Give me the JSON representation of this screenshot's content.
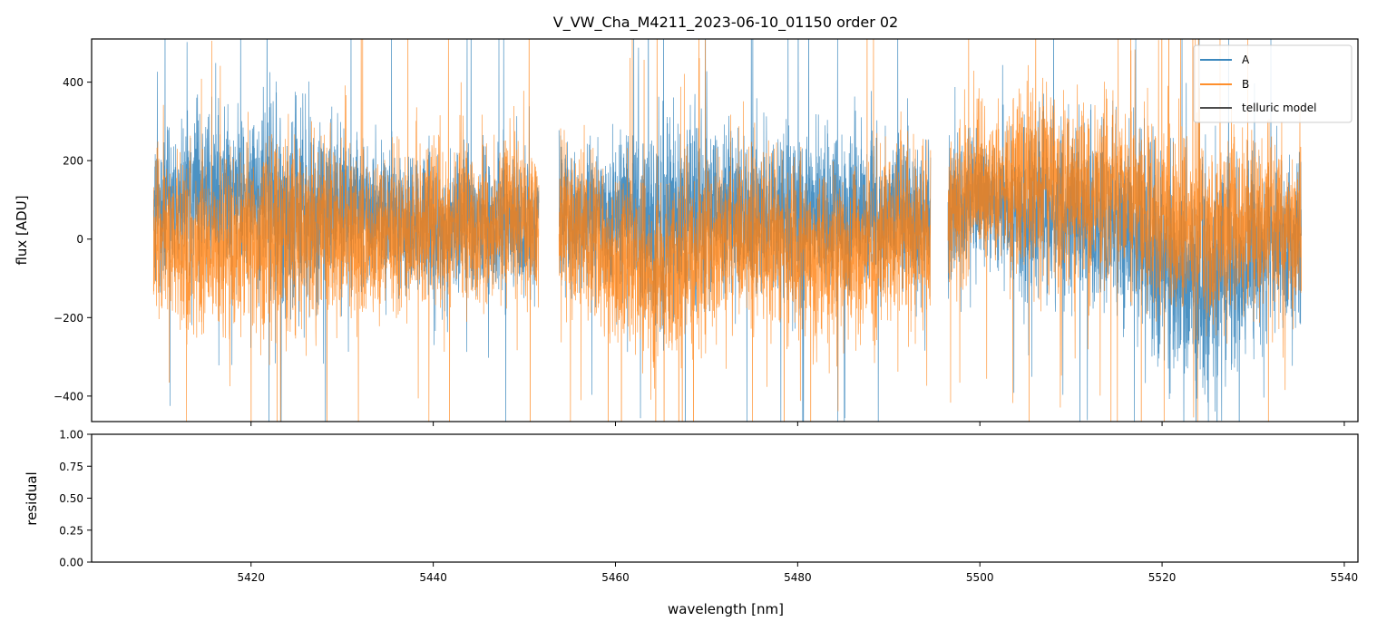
{
  "chart_data": [
    {
      "panel": "top",
      "type": "line",
      "title": "V_VW_Cha_M4211_2023-06-10_01150  order 02",
      "xlabel": "",
      "ylabel": "flux [ADU]",
      "xlim": [
        5402.5,
        5541.5
      ],
      "ylim": [
        -465,
        510
      ],
      "yticks": [
        -400,
        -200,
        0,
        200,
        400
      ],
      "ytick_labels": [
        "−400",
        "−200",
        "0",
        "200",
        "400"
      ],
      "xticks": [
        5420,
        5440,
        5460,
        5480,
        5500,
        5520,
        5540
      ],
      "grid": false,
      "legend_position": "top-right",
      "legend": [
        "A",
        "B",
        "telluric model"
      ],
      "series": [
        {
          "name": "A",
          "color": "#1f77b4",
          "segments": [
            [
              5409.3,
              5451.6
            ],
            [
              5453.8,
              5494.6
            ],
            [
              5496.5,
              5535.3
            ]
          ],
          "envelope": {
            "x": [
              5410,
              5415,
              5420,
              5425,
              5430,
              5435,
              5440,
              5445,
              5450,
              5455,
              5460,
              5465,
              5470,
              5475,
              5480,
              5485,
              5490,
              5495,
              5500,
              5505,
              5510,
              5515,
              5520,
              5525,
              5530,
              5535
            ],
            "mean": [
              80,
              120,
              110,
              60,
              90,
              60,
              30,
              40,
              30,
              60,
              70,
              30,
              80,
              60,
              70,
              60,
              60,
              60,
              110,
              50,
              70,
              40,
              -60,
              -110,
              -40,
              0
            ],
            "spread": [
              150,
              160,
              170,
              220,
              160,
              140,
              150,
              150,
              140,
              140,
              150,
              220,
              170,
              160,
              190,
              160,
              150,
              160,
              130,
              170,
              170,
              180,
              210,
              230,
              200,
              170
            ]
          }
        },
        {
          "name": "B",
          "color": "#ff7f0e",
          "segments": [
            [
              5409.3,
              5451.6
            ],
            [
              5453.8,
              5494.6
            ],
            [
              5496.5,
              5535.3
            ]
          ],
          "envelope": {
            "x": [
              5410,
              5415,
              5420,
              5425,
              5430,
              5435,
              5440,
              5445,
              5450,
              5455,
              5460,
              5465,
              5470,
              5475,
              5480,
              5485,
              5490,
              5495,
              5500,
              5505,
              5510,
              5515,
              5520,
              5525,
              5530,
              5535
            ],
            "mean": [
              -20,
              -40,
              0,
              30,
              10,
              0,
              40,
              30,
              40,
              40,
              -60,
              -100,
              -40,
              0,
              -30,
              -40,
              0,
              20,
              140,
              150,
              130,
              110,
              50,
              40,
              30,
              30
            ],
            "spread": [
              170,
              170,
              190,
              200,
              170,
              160,
              170,
              170,
              170,
              170,
              180,
              200,
              180,
              170,
              180,
              170,
              170,
              170,
              170,
              180,
              190,
              190,
              200,
              190,
              180,
              170
            ]
          }
        },
        {
          "name": "telluric model",
          "color": "#333333",
          "x": [],
          "values": []
        }
      ]
    },
    {
      "panel": "bottom",
      "type": "line",
      "title": "",
      "xlabel": "wavelength [nm]",
      "ylabel": "residual",
      "xlim": [
        5402.5,
        5541.5
      ],
      "ylim": [
        0.0,
        1.0
      ],
      "yticks": [
        0.0,
        0.25,
        0.5,
        0.75,
        1.0
      ],
      "ytick_labels": [
        "0.00",
        "0.25",
        "0.50",
        "0.75",
        "1.00"
      ],
      "xticks": [
        5420,
        5440,
        5460,
        5480,
        5500,
        5520,
        5540
      ],
      "xtick_labels": [
        "5420",
        "5440",
        "5460",
        "5480",
        "5500",
        "5520",
        "5540"
      ],
      "grid": false,
      "series": []
    }
  ]
}
